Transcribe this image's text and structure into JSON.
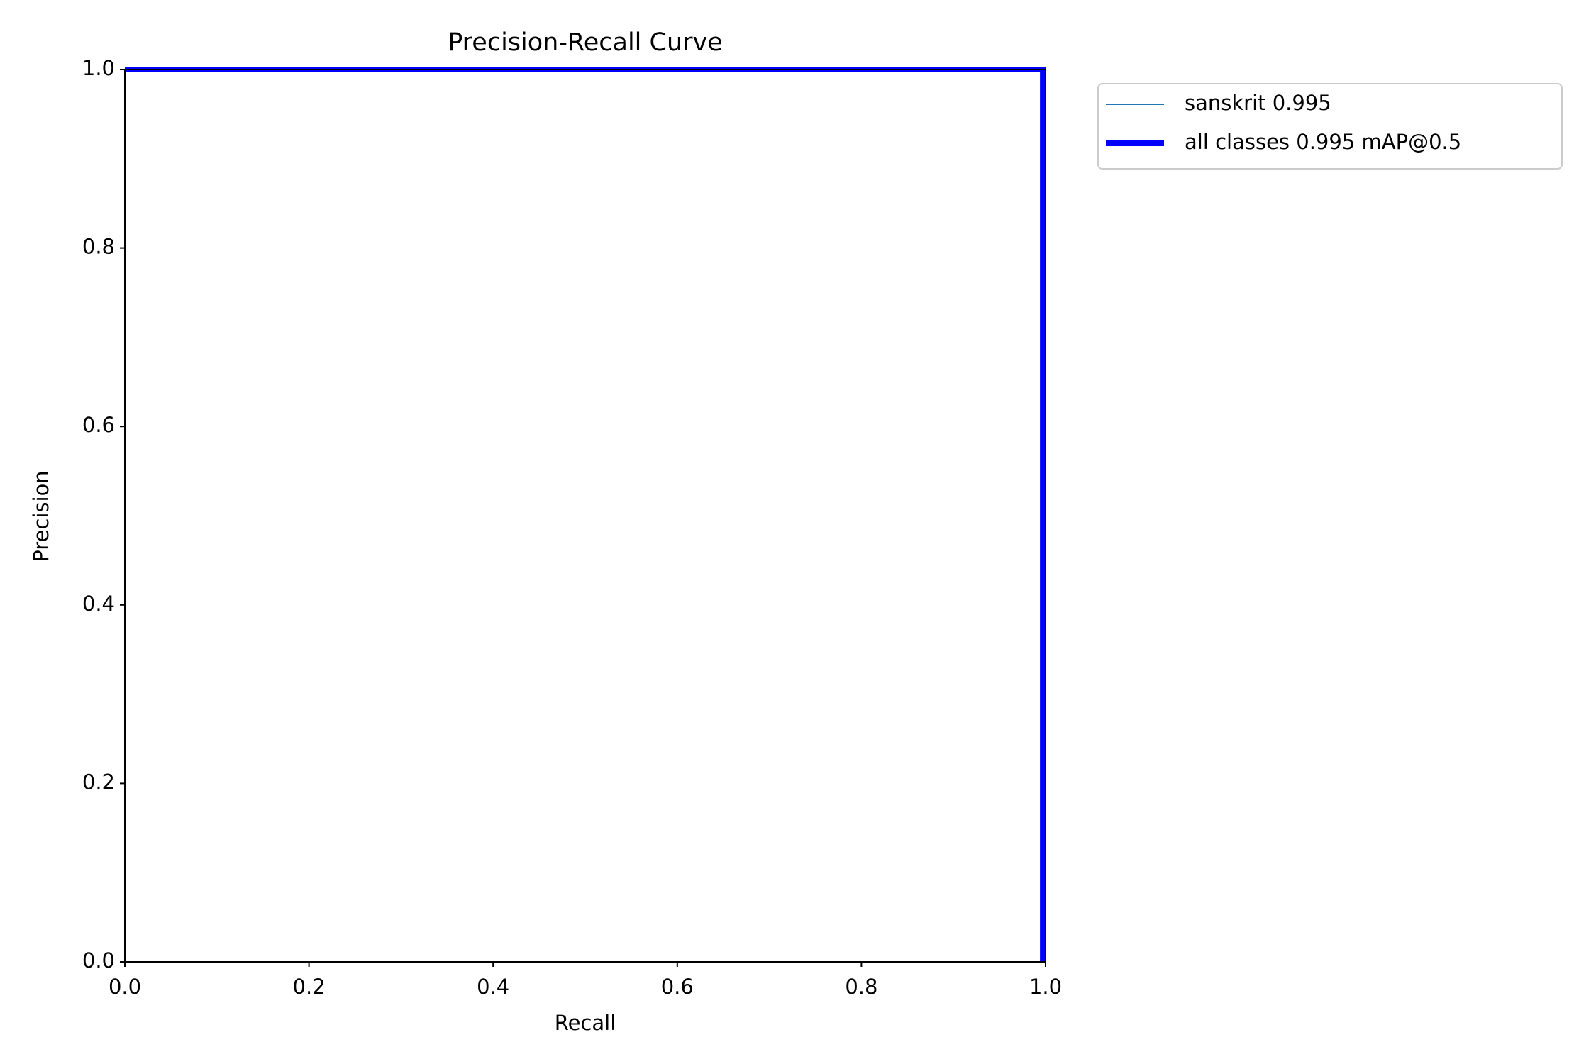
{
  "chart_data": {
    "type": "line",
    "title": "Precision-Recall Curve",
    "xlabel": "Recall",
    "ylabel": "Precision",
    "x": [
      0,
      0.997,
      0.997
    ],
    "series": [
      {
        "name": "sanskrit 0.995",
        "color": "#1f77b4",
        "width": 2,
        "values": [
          1,
          1,
          0
        ]
      },
      {
        "name": "all classes 0.995 mAP@0.5",
        "color": "#0000ff",
        "width": 8,
        "values": [
          1,
          1,
          0
        ]
      }
    ],
    "xlim": [
      0,
      1
    ],
    "ylim": [
      0,
      1
    ],
    "xticks": [
      {
        "value": 0,
        "label": "0.0"
      },
      0.2,
      0.4,
      0.6,
      0.8,
      {
        "value": 1,
        "label": "1.0"
      }
    ],
    "yticks": [
      {
        "value": 0,
        "label": "0.0"
      },
      0.2,
      0.4,
      0.6,
      0.8,
      {
        "value": 1,
        "label": "1.0"
      }
    ],
    "grid": false,
    "legend": "outside upper right"
  }
}
